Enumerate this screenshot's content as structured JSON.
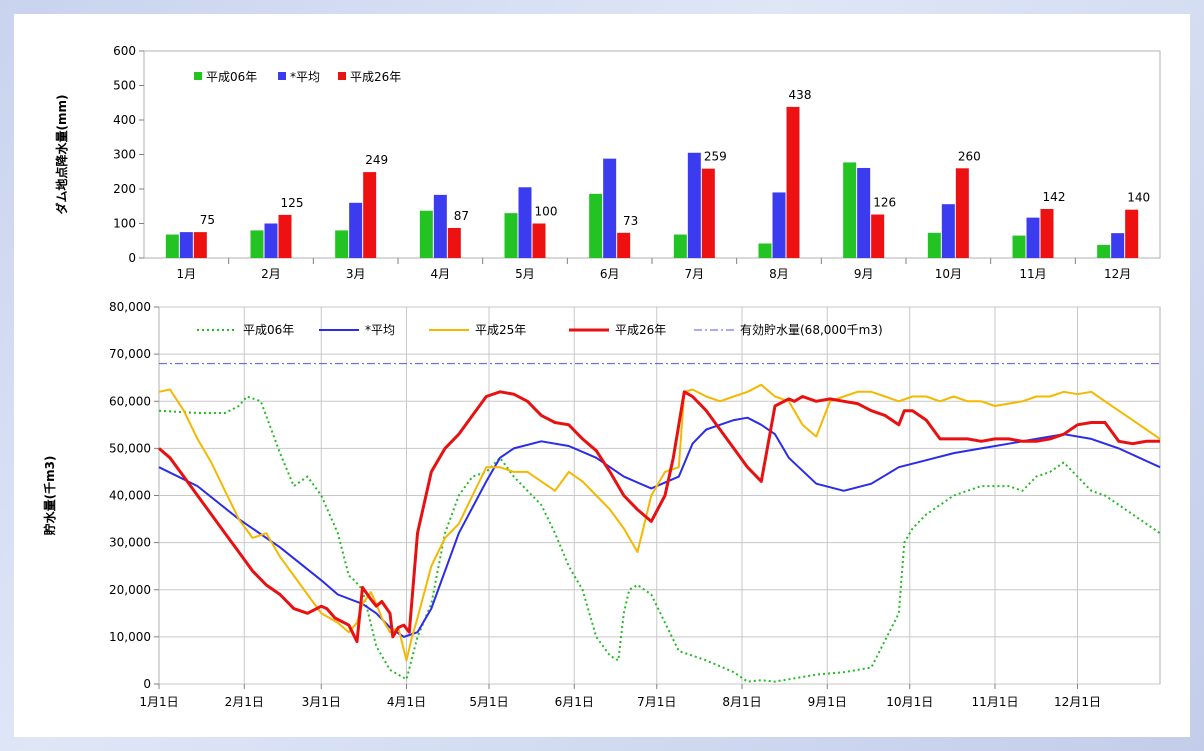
{
  "chart_data": [
    {
      "type": "bar",
      "ylabel": "ダム地点降水量(mm)",
      "ylim": [
        0,
        600
      ],
      "yticks": [
        "0",
        "100",
        "200",
        "300",
        "400",
        "500",
        "600"
      ],
      "categories": [
        "1月",
        "2月",
        "3月",
        "4月",
        "5月",
        "6月",
        "7月",
        "8月",
        "9月",
        "10月",
        "11月",
        "12月"
      ],
      "legend_position": "top-left",
      "series": [
        {
          "name": "平成06年",
          "color": "#22c322",
          "values": [
            68,
            80,
            80,
            137,
            130,
            186,
            68,
            42,
            277,
            73,
            65,
            38
          ]
        },
        {
          "name": "*平均",
          "color": "#3b3bf0",
          "values": [
            75,
            100,
            160,
            183,
            205,
            288,
            305,
            190,
            261,
            156,
            117,
            72
          ]
        },
        {
          "name": "平成26年",
          "color": "#ee1111",
          "values": [
            75,
            125,
            249,
            87,
            100,
            73,
            259,
            438,
            126,
            260,
            142,
            140
          ],
          "data_labels": [
            "75",
            "125",
            "249",
            "87",
            "100",
            "73",
            "259",
            "438",
            "126",
            "260",
            "142",
            "140"
          ]
        }
      ]
    },
    {
      "type": "line",
      "ylabel": "貯水量(千m3)",
      "ylim": [
        0,
        80000
      ],
      "yticks": [
        "0",
        "10,000",
        "20,000",
        "30,000",
        "40,000",
        "50,000",
        "60,000",
        "70,000",
        "80,000"
      ],
      "xticks": [
        "1月1日",
        "2月1日",
        "3月1日",
        "4月1日",
        "5月1日",
        "6月1日",
        "7月1日",
        "8月1日",
        "9月1日",
        "10月1日",
        "11月1日",
        "12月1日"
      ],
      "grid": true,
      "legend_position": "top",
      "series": [
        {
          "name": "平成06年",
          "color": "#22bb22",
          "style": "dotted",
          "x": [
            1,
            15,
            25,
            30,
            33,
            38,
            45,
            50,
            55,
            60,
            66,
            70,
            72,
            75,
            80,
            85,
            88,
            91,
            95,
            100,
            105,
            110,
            115,
            120,
            125,
            130,
            135,
            140,
            145,
            150,
            155,
            160,
            165,
            168,
            170,
            172,
            175,
            180,
            185,
            190,
            200,
            210,
            215,
            220,
            225,
            230,
            240,
            250,
            255,
            260,
            270,
            272,
            275,
            280,
            290,
            300,
            310,
            315,
            320,
            325,
            330,
            335,
            340,
            345,
            350,
            365
          ],
          "y": [
            58000,
            57500,
            57500,
            59000,
            61000,
            60000,
            49000,
            42000,
            44000,
            40000,
            32000,
            23000,
            22000,
            20000,
            8000,
            3000,
            2000,
            1000,
            10000,
            17000,
            32000,
            40000,
            44000,
            45000,
            48000,
            44000,
            41000,
            38000,
            32000,
            25000,
            20000,
            10000,
            6000,
            5000,
            15000,
            20000,
            21000,
            19000,
            13000,
            7000,
            5000,
            2500,
            500,
            800,
            500,
            1000,
            2000,
            2500,
            3000,
            3500,
            15000,
            30000,
            33000,
            36000,
            40000,
            42000,
            42000,
            41000,
            44000,
            45000,
            47000,
            44000,
            41000,
            40000,
            38000,
            32000
          ]
        },
        {
          "name": "*平均",
          "color": "#2b2bea",
          "style": "solid",
          "x": [
            1,
            15,
            30,
            45,
            60,
            66,
            75,
            80,
            85,
            90,
            95,
            100,
            110,
            120,
            125,
            130,
            140,
            150,
            160,
            170,
            180,
            190,
            195,
            200,
            205,
            210,
            215,
            220,
            225,
            230,
            240,
            250,
            260,
            270,
            280,
            290,
            300,
            310,
            320,
            330,
            340,
            350,
            365
          ],
          "y": [
            46000,
            42000,
            35000,
            29000,
            22000,
            19000,
            17000,
            15000,
            12000,
            10000,
            11000,
            16000,
            32000,
            43000,
            48000,
            50000,
            51500,
            50500,
            48000,
            44000,
            41500,
            44000,
            51000,
            54000,
            55000,
            56000,
            56500,
            55000,
            53000,
            48000,
            42500,
            41000,
            42500,
            46000,
            47500,
            49000,
            50000,
            51000,
            52000,
            53000,
            52000,
            50000,
            46000
          ]
        },
        {
          "name": "平成25年",
          "color": "#f5b800",
          "style": "solid",
          "x": [
            1,
            5,
            10,
            15,
            20,
            25,
            30,
            35,
            40,
            45,
            50,
            55,
            60,
            66,
            70,
            73,
            75,
            78,
            80,
            82,
            85,
            88,
            91,
            93,
            95,
            100,
            105,
            110,
            115,
            120,
            125,
            130,
            135,
            140,
            145,
            150,
            155,
            160,
            165,
            170,
            175,
            180,
            182,
            185,
            190,
            192,
            195,
            200,
            205,
            210,
            215,
            220,
            225,
            230,
            235,
            240,
            245,
            250,
            255,
            260,
            265,
            270,
            275,
            280,
            285,
            290,
            295,
            300,
            305,
            310,
            315,
            320,
            325,
            330,
            335,
            340,
            345,
            350,
            355,
            360,
            365
          ],
          "y": [
            62000,
            62500,
            58000,
            52000,
            47000,
            41000,
            35000,
            31000,
            32000,
            27000,
            23000,
            19000,
            15000,
            13000,
            11000,
            13000,
            17000,
            19500,
            17000,
            14000,
            11000,
            12000,
            5000,
            10000,
            14000,
            25000,
            31000,
            34000,
            40000,
            46000,
            46000,
            45000,
            45000,
            43000,
            41000,
            45000,
            43000,
            40000,
            37000,
            33000,
            28000,
            40000,
            42000,
            45000,
            46000,
            62000,
            62500,
            61000,
            60000,
            61000,
            62000,
            63500,
            61000,
            60000,
            55000,
            52500,
            60000,
            61000,
            62000,
            62000,
            61000,
            60000,
            61000,
            61000,
            60000,
            61000,
            60000,
            60000,
            59000,
            59500,
            60000,
            61000,
            61000,
            62000,
            61500,
            62000,
            60000,
            58000,
            56000,
            54000,
            52000
          ]
        },
        {
          "name": "平成26年",
          "color": "#e81010",
          "style": "solid",
          "width": 3,
          "x": [
            1,
            5,
            10,
            15,
            20,
            25,
            30,
            35,
            40,
            45,
            50,
            55,
            60,
            62,
            65,
            70,
            73,
            75,
            78,
            80,
            82,
            85,
            86,
            88,
            90,
            92,
            95,
            100,
            105,
            110,
            115,
            120,
            125,
            130,
            135,
            140,
            145,
            150,
            155,
            160,
            165,
            170,
            175,
            180,
            185,
            188,
            190,
            192,
            195,
            200,
            205,
            210,
            215,
            220,
            225,
            230,
            232,
            235,
            240,
            245,
            250,
            255,
            260,
            265,
            270,
            272,
            275,
            280,
            285,
            290,
            295,
            300,
            305,
            310,
            315,
            320,
            325,
            330,
            335,
            340,
            345,
            350,
            355,
            360,
            365
          ],
          "y": [
            50000,
            48000,
            44000,
            40000,
            36000,
            32000,
            28000,
            24000,
            21000,
            19000,
            16000,
            15000,
            16500,
            16000,
            14000,
            12500,
            9000,
            20500,
            18000,
            16500,
            17500,
            15000,
            10000,
            12000,
            12500,
            11000,
            32000,
            45000,
            50000,
            53000,
            57000,
            61000,
            62000,
            61500,
            60000,
            57000,
            55500,
            55000,
            52000,
            49500,
            45000,
            40000,
            37000,
            34500,
            40000,
            48000,
            55000,
            62000,
            61000,
            58000,
            54000,
            50000,
            46000,
            43000,
            59000,
            60500,
            60000,
            61000,
            60000,
            60500,
            60000,
            59500,
            58000,
            57000,
            55000,
            58000,
            58000,
            56000,
            52000,
            52000,
            52000,
            51500,
            52000,
            52000,
            51500,
            51500,
            52000,
            53000,
            55000,
            55500,
            55500,
            51500,
            51000,
            51500,
            51500
          ]
        },
        {
          "name": "有効貯水量(68,000千m3)",
          "color": "#5555ee",
          "style": "dashdot",
          "x": [
            1,
            365
          ],
          "y": [
            68000,
            68000
          ]
        }
      ]
    }
  ]
}
